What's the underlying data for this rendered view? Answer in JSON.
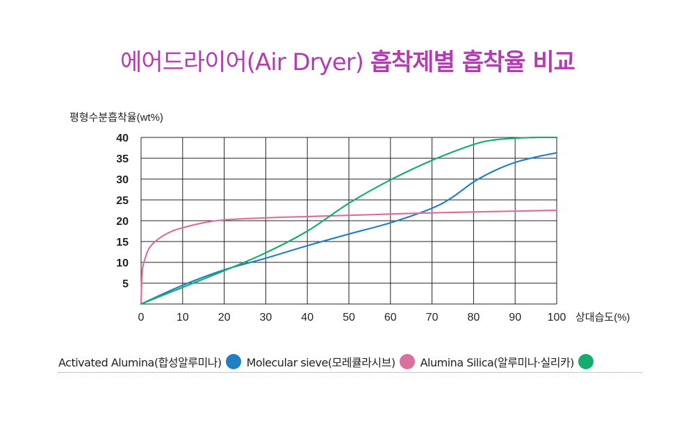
{
  "title": {
    "light": "에어드라이어(Air Dryer) ",
    "bold": "흡착제별 흡착율 비교"
  },
  "colors": {
    "title": "#b33cb3",
    "activated_alumina": "#1f7fc2",
    "molecular_sieve": "#d9709e",
    "alumina_silica": "#15ad6e",
    "legend_rule": "#c46ad0"
  },
  "legend": [
    {
      "label": "Activated Alumina(합성알루미나)",
      "color": "#1f7fc2"
    },
    {
      "label": "Molecular sieve(모레큘라시브)",
      "color": "#d9709e"
    },
    {
      "label": "Alumina Silica(알루미나·실리카)",
      "color": "#15ad6e"
    }
  ],
  "chart_data": {
    "type": "line",
    "xlabel": "상대습도(%)",
    "ylabel": "평형수분흡착율(wt%)",
    "xlim": [
      0,
      100
    ],
    "ylim": [
      0,
      40
    ],
    "xticks": [
      "0",
      "10",
      "20",
      "30",
      "40",
      "50",
      "60",
      "70",
      "80",
      "90",
      "100"
    ],
    "yticks": [
      "5",
      "10",
      "15",
      "20",
      "25",
      "30",
      "35",
      "40"
    ],
    "grid": true,
    "series": [
      {
        "name": "Activated Alumina(합성알루미나)",
        "color": "#1f7fc2",
        "x": [
          0,
          10,
          20,
          30,
          40,
          50,
          60,
          70,
          75,
          80,
          85,
          90,
          95,
          100
        ],
        "y": [
          0,
          4.5,
          8.2,
          11,
          14,
          16.8,
          19.5,
          23,
          25.7,
          29.3,
          32,
          34,
          35.3,
          36.3
        ]
      },
      {
        "name": "Molecular sieve(모레큘라시브)",
        "color": "#d9709e",
        "x": [
          0,
          0.3,
          1,
          2,
          4,
          7,
          10,
          15,
          20,
          30,
          40,
          50,
          60,
          70,
          80,
          90,
          100
        ],
        "y": [
          0,
          8,
          11,
          13.5,
          15.5,
          17.3,
          18.3,
          19.5,
          20.2,
          20.7,
          21,
          21.3,
          21.6,
          21.9,
          22.1,
          22.3,
          22.5
        ]
      },
      {
        "name": "Alumina Silica(알루미나·실리카)",
        "color": "#15ad6e",
        "x": [
          0,
          10,
          20,
          30,
          40,
          50,
          60,
          70,
          80,
          85,
          90,
          95,
          100
        ],
        "y": [
          0,
          4,
          8,
          12.3,
          17.5,
          24.2,
          29.8,
          34.5,
          38.3,
          39.4,
          39.8,
          40,
          40
        ]
      }
    ]
  }
}
